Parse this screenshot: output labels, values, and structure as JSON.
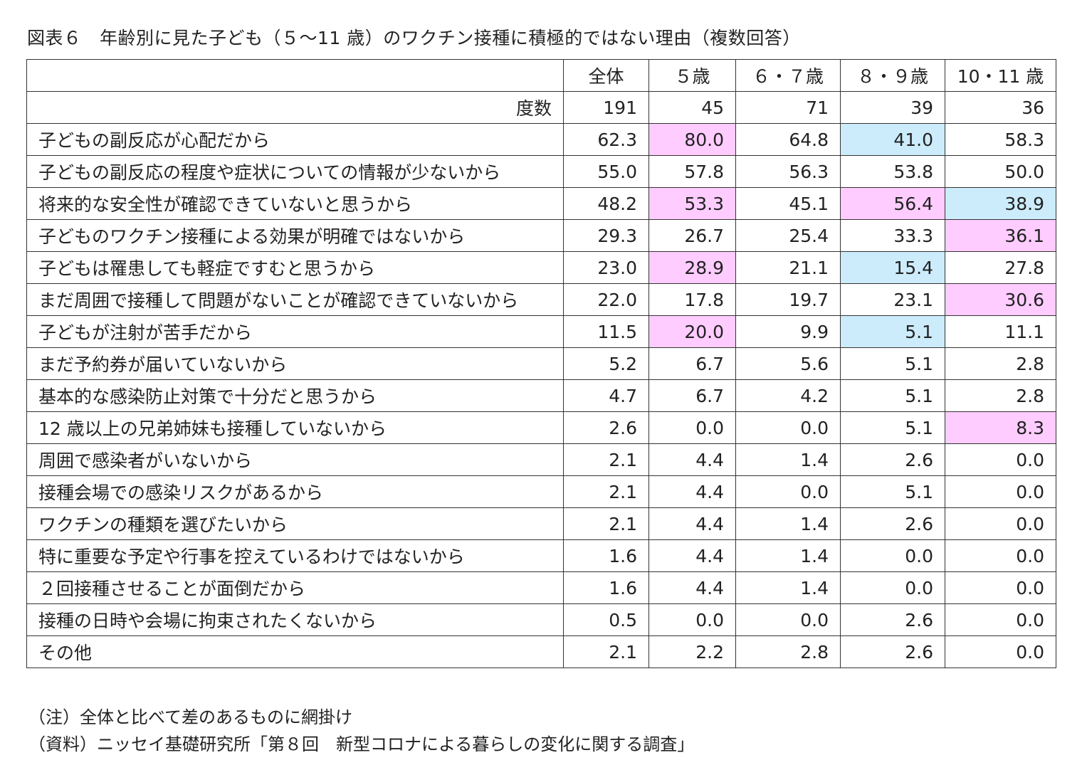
{
  "title": "図表６　年齢別に見た子ども（５～11 歳）のワクチン接種に積極的ではない理由（複数回答）",
  "chart_data": {
    "type": "table",
    "title": "図表６　年齢別に見た子ども（５～11 歳）のワクチン接種に積極的ではない理由（複数回答）",
    "columns": [
      "全体",
      "５歳",
      "６・７歳",
      "８・９歳",
      "10・11 歳"
    ],
    "frequency_label": "度数",
    "frequency": [
      "191",
      "45",
      "71",
      "39",
      "36"
    ],
    "rows": [
      {
        "label": "子どもの副反応が心配だから",
        "values": [
          "62.3",
          "80.0",
          "64.8",
          "41.0",
          "58.3"
        ],
        "shade": [
          "",
          "pink",
          "",
          "blue",
          ""
        ]
      },
      {
        "label": "子どもの副反応の程度や症状についての情報が少ないから",
        "values": [
          "55.0",
          "57.8",
          "56.3",
          "53.8",
          "50.0"
        ],
        "shade": [
          "",
          "",
          "",
          "",
          ""
        ]
      },
      {
        "label": "将来的な安全性が確認できていないと思うから",
        "values": [
          "48.2",
          "53.3",
          "45.1",
          "56.4",
          "38.9"
        ],
        "shade": [
          "",
          "pink",
          "",
          "pink",
          "blue"
        ]
      },
      {
        "label": "子どものワクチン接種による効果が明確ではないから",
        "values": [
          "29.3",
          "26.7",
          "25.4",
          "33.3",
          "36.1"
        ],
        "shade": [
          "",
          "",
          "",
          "",
          "pink"
        ]
      },
      {
        "label": "子どもは罹患しても軽症ですむと思うから",
        "values": [
          "23.0",
          "28.9",
          "21.1",
          "15.4",
          "27.8"
        ],
        "shade": [
          "",
          "pink",
          "",
          "blue",
          ""
        ]
      },
      {
        "label": "まだ周囲で接種して問題がないことが確認できていないから",
        "values": [
          "22.0",
          "17.8",
          "19.7",
          "23.1",
          "30.6"
        ],
        "shade": [
          "",
          "",
          "",
          "",
          "pink"
        ]
      },
      {
        "label": "子どもが注射が苦手だから",
        "values": [
          "11.5",
          "20.0",
          "9.9",
          "5.1",
          "11.1"
        ],
        "shade": [
          "",
          "pink",
          "",
          "blue",
          ""
        ]
      },
      {
        "label": "まだ予約券が届いていないから",
        "values": [
          "5.2",
          "6.7",
          "5.6",
          "5.1",
          "2.8"
        ],
        "shade": [
          "",
          "",
          "",
          "",
          ""
        ]
      },
      {
        "label": "基本的な感染防止対策で十分だと思うから",
        "values": [
          "4.7",
          "6.7",
          "4.2",
          "5.1",
          "2.8"
        ],
        "shade": [
          "",
          "",
          "",
          "",
          ""
        ]
      },
      {
        "label": "12 歳以上の兄弟姉妹も接種していないから",
        "values": [
          "2.6",
          "0.0",
          "0.0",
          "5.1",
          "8.3"
        ],
        "shade": [
          "",
          "",
          "",
          "",
          "pink"
        ]
      },
      {
        "label": "周囲で感染者がいないから",
        "values": [
          "2.1",
          "4.4",
          "1.4",
          "2.6",
          "0.0"
        ],
        "shade": [
          "",
          "",
          "",
          "",
          ""
        ]
      },
      {
        "label": "接種会場での感染リスクがあるから",
        "values": [
          "2.1",
          "4.4",
          "0.0",
          "5.1",
          "0.0"
        ],
        "shade": [
          "",
          "",
          "",
          "",
          ""
        ]
      },
      {
        "label": "ワクチンの種類を選びたいから",
        "values": [
          "2.1",
          "4.4",
          "1.4",
          "2.6",
          "0.0"
        ],
        "shade": [
          "",
          "",
          "",
          "",
          ""
        ]
      },
      {
        "label": "特に重要な予定や行事を控えているわけではないから",
        "values": [
          "1.6",
          "4.4",
          "1.4",
          "0.0",
          "0.0"
        ],
        "shade": [
          "",
          "",
          "",
          "",
          ""
        ]
      },
      {
        "label": "２回接種させることが面倒だから",
        "values": [
          "1.6",
          "4.4",
          "1.4",
          "0.0",
          "0.0"
        ],
        "shade": [
          "",
          "",
          "",
          "",
          ""
        ]
      },
      {
        "label": "接種の日時や会場に拘束されたくないから",
        "values": [
          "0.5",
          "0.0",
          "0.0",
          "2.6",
          "0.0"
        ],
        "shade": [
          "",
          "",
          "",
          "",
          ""
        ]
      },
      {
        "label": "その他",
        "values": [
          "2.1",
          "2.2",
          "2.8",
          "2.6",
          "0.0"
        ],
        "shade": [
          "",
          "",
          "",
          "",
          ""
        ]
      }
    ],
    "shade_colors": {
      "pink": "#ffccff",
      "blue": "#ccecfc"
    }
  },
  "notes": {
    "note1": "（注）全体と比べて差のあるものに網掛け",
    "note2": "（資料）ニッセイ基礎研究所「第８回　新型コロナによる暮らしの変化に関する調査」"
  }
}
